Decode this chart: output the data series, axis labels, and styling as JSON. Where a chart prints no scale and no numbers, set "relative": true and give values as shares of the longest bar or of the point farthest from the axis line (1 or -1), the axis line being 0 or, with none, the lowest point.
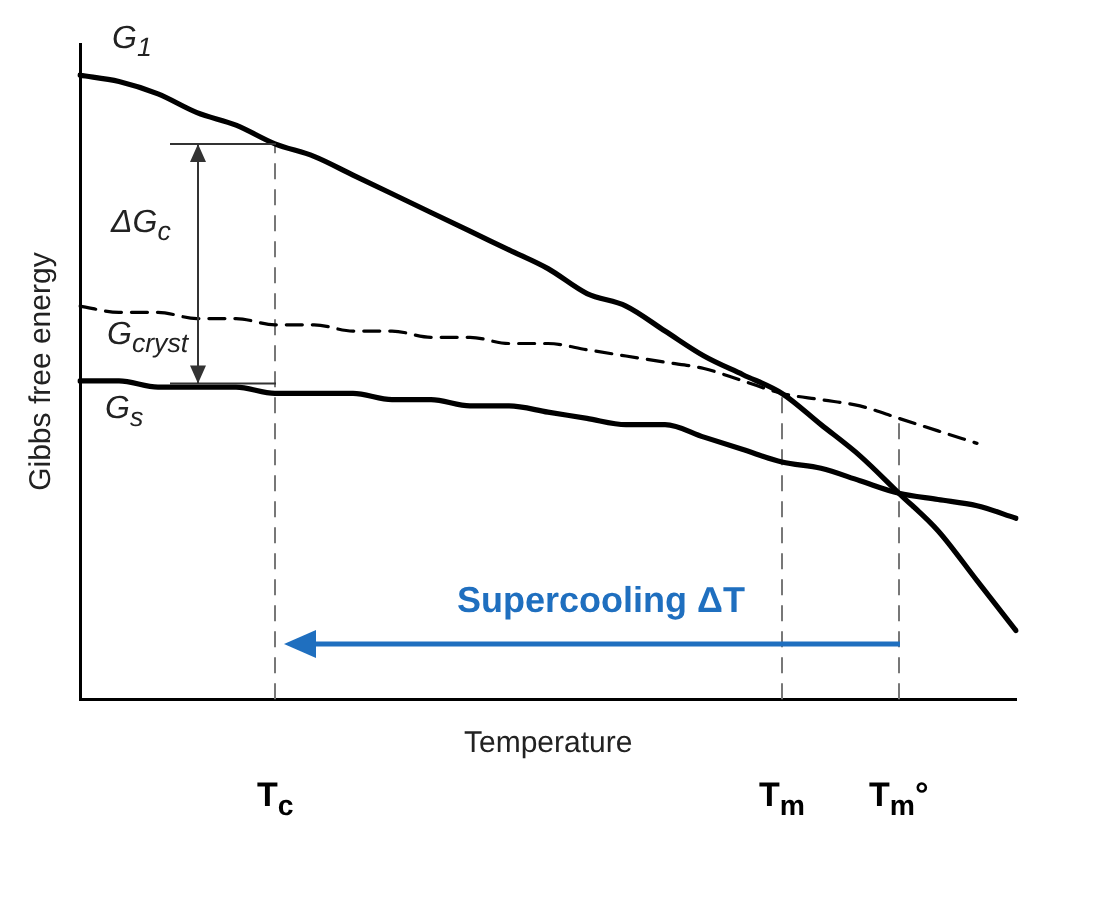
{
  "chart_data": {
    "type": "line",
    "relative": true,
    "xlabel": "Temperature",
    "ylabel": "Gibbs free energy",
    "categories": [
      null,
      null,
      null,
      null,
      null,
      "T$_{c}$",
      null,
      null,
      null,
      null,
      null,
      null,
      null,
      null,
      null,
      null,
      null,
      null,
      "T$_{m}$",
      null,
      null,
      "T$_{m}$°",
      null,
      null,
      null
    ],
    "series": [
      {
        "name": "G$_{1}$",
        "color": "#000000",
        "line_style": "solid",
        "values": [
          1.0,
          0.99,
          0.97,
          0.94,
          0.92,
          0.89,
          0.87,
          0.84,
          0.81,
          0.78,
          0.75,
          0.72,
          0.69,
          0.65,
          0.63,
          0.59,
          0.55,
          0.52,
          0.49,
          0.44,
          0.39,
          0.33,
          0.27,
          0.19,
          0.11
        ]
      },
      {
        "name": "G$_{cryst}$",
        "color": "#000000",
        "line_style": "dashed",
        "values": [
          0.63,
          0.62,
          0.62,
          0.61,
          0.61,
          0.6,
          0.6,
          0.59,
          0.59,
          0.58,
          0.58,
          0.57,
          0.57,
          0.56,
          0.55,
          0.54,
          0.53,
          0.51,
          0.49,
          0.48,
          0.47,
          0.45,
          0.43,
          0.41,
          null
        ]
      },
      {
        "name": "G$_{s}$",
        "color": "#000000",
        "line_style": "solid",
        "values": [
          0.51,
          0.51,
          0.5,
          0.5,
          0.5,
          0.49,
          0.49,
          0.49,
          0.48,
          0.48,
          0.47,
          0.47,
          0.46,
          0.45,
          0.44,
          0.44,
          0.42,
          0.4,
          0.38,
          0.37,
          0.35,
          0.33,
          0.32,
          0.31,
          0.29
        ]
      }
    ],
    "ref_lines": [
      {
        "axis": "x",
        "value": "T$_{c}$",
        "color": "#777777",
        "line_style": "dashed"
      },
      {
        "axis": "x",
        "value": "T$_{m}$",
        "color": "#777777",
        "line_style": "dashed"
      },
      {
        "axis": "x",
        "value": "T$_{m}$°",
        "color": "#777777",
        "line_style": "dashed"
      }
    ],
    "annotations": [
      "ΔG$_{c}$",
      "Supercooling ΔT"
    ],
    "grid": false,
    "legend": false
  }
}
